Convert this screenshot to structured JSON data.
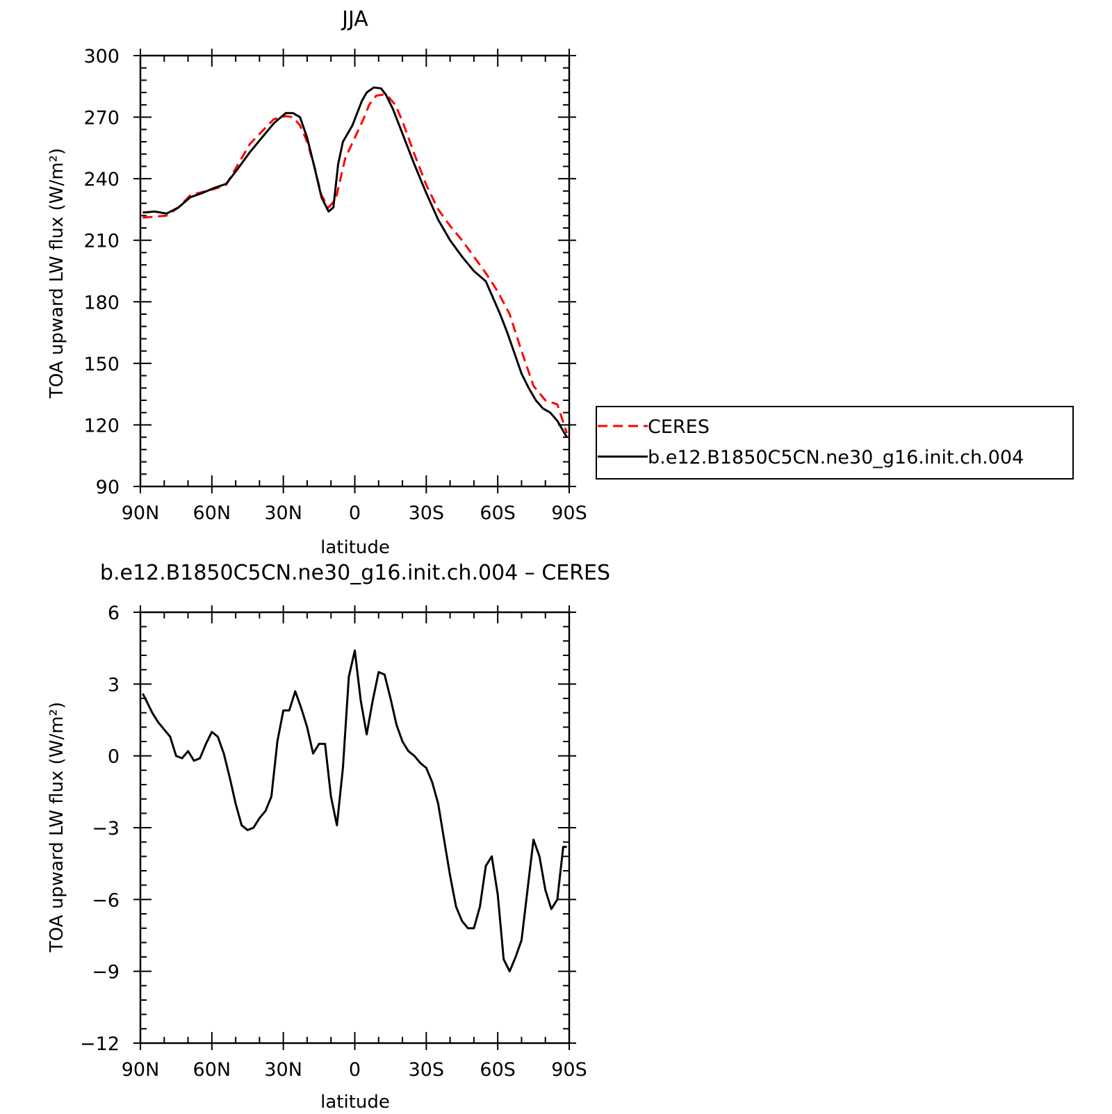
{
  "chart_data": [
    {
      "type": "line",
      "title": "JJA",
      "xlabel": "latitude",
      "ylabel": "TOA upward LW flux (W/m²)",
      "xlim": [
        90,
        -90
      ],
      "ylim": [
        90,
        300
      ],
      "x_ticks": [
        90,
        60,
        30,
        0,
        -30,
        -60,
        -90
      ],
      "x_tick_labels": [
        "90N",
        "60N",
        "30N",
        "0",
        "30S",
        "60S",
        "90S"
      ],
      "y_ticks": [
        90,
        120,
        150,
        180,
        210,
        240,
        270,
        300
      ],
      "y_tick_labels": [
        "90",
        "120",
        "150",
        "180",
        "210",
        "240",
        "270",
        "300"
      ],
      "legend_position": "right",
      "series": [
        {
          "name": "CERES",
          "color": "#ff0000",
          "style": "dashed",
          "x": [
            89,
            84,
            79,
            74,
            69,
            64,
            59,
            54,
            49,
            44,
            39,
            34,
            29,
            26,
            23,
            20,
            17,
            14,
            11,
            8,
            6,
            4,
            2,
            0,
            -2,
            -4,
            -6,
            -9,
            -12,
            -14,
            -17,
            -20,
            -25,
            -30,
            -35,
            -40,
            -45,
            -50,
            -55,
            -60,
            -65,
            -70,
            -75,
            -80,
            -85,
            -89
          ],
          "y": [
            221,
            221.5,
            222,
            226,
            232,
            233.5,
            235,
            237,
            247,
            257,
            263,
            269,
            270.5,
            270,
            266,
            258,
            246,
            232,
            226,
            230,
            240,
            250,
            255,
            260,
            265,
            270,
            276,
            280.5,
            281,
            280,
            276,
            268,
            252,
            237,
            225,
            217,
            210,
            202,
            194,
            185,
            174,
            156,
            139,
            132,
            130,
            116
          ]
        },
        {
          "name": "b.e12.B1850C5CN.ne30_g16.init.ch.004",
          "color": "#000000",
          "style": "solid",
          "x": [
            89,
            84,
            79,
            74,
            69,
            64,
            59,
            54,
            49,
            44,
            39,
            34,
            29,
            26,
            23,
            20,
            17,
            14,
            11,
            9,
            7,
            5,
            3,
            1,
            -1,
            -3,
            -5,
            -8,
            -11,
            -13,
            -16,
            -19,
            -22,
            -25,
            -30,
            -35,
            -40,
            -45,
            -50,
            -55,
            -58,
            -61,
            -64,
            -67,
            -70,
            -73,
            -76,
            -79,
            -82,
            -85,
            -89
          ],
          "y": [
            223.5,
            224,
            223,
            226,
            231,
            233,
            235.5,
            237.5,
            245,
            253,
            260,
            267,
            272,
            272,
            270,
            260,
            246,
            231,
            224,
            226,
            247,
            258,
            262,
            266,
            272,
            278,
            282,
            284.5,
            284,
            281,
            274,
            265,
            256,
            247,
            233,
            220,
            210,
            202,
            195,
            190,
            182,
            174,
            165,
            155,
            145,
            138,
            132,
            128,
            126,
            122,
            114
          ]
        }
      ]
    },
    {
      "type": "line",
      "title": "b.e12.B1850C5CN.ne30_g16.init.ch.004 – CERES",
      "xlabel": "latitude",
      "ylabel": "TOA upward LW flux (W/m²)",
      "xlim": [
        90,
        -90
      ],
      "ylim": [
        -12,
        6
      ],
      "x_ticks": [
        90,
        60,
        30,
        0,
        -30,
        -60,
        -90
      ],
      "x_tick_labels": [
        "90N",
        "60N",
        "30N",
        "0",
        "30S",
        "60S",
        "90S"
      ],
      "y_ticks": [
        -12,
        -9,
        -6,
        -3,
        0,
        3,
        6
      ],
      "y_tick_labels": [
        "−12",
        "−9",
        "−6",
        "−3",
        "0",
        "3",
        "6"
      ],
      "series": [
        {
          "color": "#000000",
          "style": "solid",
          "x": [
            89,
            87.5,
            85,
            82.5,
            80,
            77.5,
            75,
            72.5,
            70,
            67.5,
            65,
            62.5,
            60,
            57.5,
            55,
            52.5,
            50,
            47.5,
            45,
            42.5,
            40,
            37.5,
            35,
            32.5,
            30,
            27.5,
            25,
            22.5,
            20,
            17.5,
            15,
            12.5,
            10,
            7.5,
            5,
            2.5,
            0,
            -2.5,
            -5,
            -7.5,
            -10,
            -12.5,
            -15,
            -17.5,
            -20,
            -22.5,
            -25,
            -27.5,
            -30,
            -32.5,
            -35,
            -37.5,
            -40,
            -42.5,
            -45,
            -47.5,
            -50,
            -52.5,
            -55,
            -57.5,
            -60,
            -62.5,
            -65,
            -67.5,
            -70,
            -72.5,
            -75,
            -77.5,
            -80,
            -82.5,
            -85,
            -87.5,
            -89
          ],
          "y": [
            2.6,
            2.3,
            1.8,
            1.4,
            1.1,
            0.8,
            0.0,
            -0.1,
            0.2,
            -0.2,
            -0.1,
            0.5,
            1.0,
            0.8,
            0.1,
            -0.9,
            -2.0,
            -2.9,
            -3.1,
            -3.0,
            -2.6,
            -2.3,
            -1.7,
            0.6,
            1.9,
            1.9,
            2.7,
            2.0,
            1.2,
            0.1,
            0.5,
            0.5,
            -1.7,
            -2.9,
            -0.5,
            3.3,
            4.4,
            2.3,
            0.9,
            2.3,
            3.5,
            3.4,
            2.4,
            1.3,
            0.6,
            0.2,
            0.0,
            -0.3,
            -0.5,
            -1.1,
            -2.0,
            -3.5,
            -5.0,
            -6.3,
            -6.9,
            -7.2,
            -7.2,
            -6.3,
            -4.6,
            -4.2,
            -5.8,
            -8.5,
            -9.0,
            -8.4,
            -7.7,
            -5.6,
            -3.5,
            -4.2,
            -5.6,
            -6.4,
            -6.0,
            -3.8,
            -3.8
          ]
        }
      ]
    }
  ]
}
